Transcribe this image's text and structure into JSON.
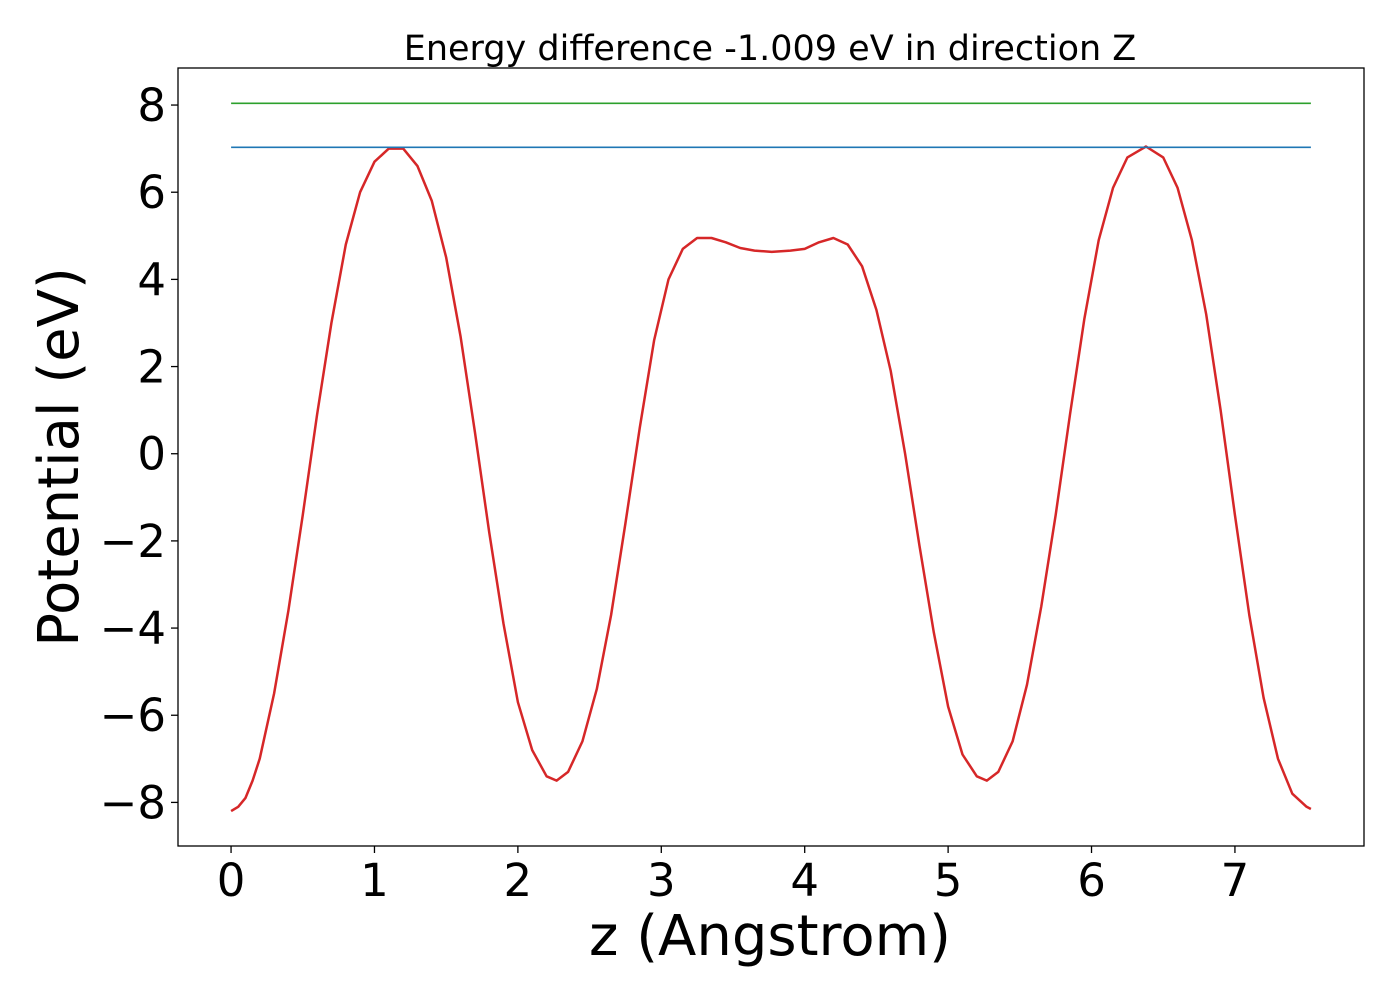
{
  "chart_data": {
    "type": "line",
    "title": "Energy difference -1.009 eV in direction Z",
    "xlabel": "z (Angstrom)",
    "ylabel": "Potential (eV)",
    "xlim": [
      -0.37,
      7.9
    ],
    "ylim": [
      -9.0,
      8.85
    ],
    "xticks": [
      0,
      1,
      2,
      3,
      4,
      5,
      6,
      7
    ],
    "yticks": [
      -8,
      -6,
      -4,
      -2,
      0,
      2,
      4,
      6,
      8
    ],
    "xtick_labels": [
      "0",
      "1",
      "2",
      "3",
      "4",
      "5",
      "6",
      "7"
    ],
    "ytick_labels": [
      "−8",
      "−6",
      "−4",
      "−2",
      "0",
      "2",
      "4",
      "6",
      "8"
    ],
    "grid": false,
    "series": [
      {
        "color": "#d62728",
        "x": [
          0.0,
          0.05,
          0.1,
          0.15,
          0.2,
          0.3,
          0.4,
          0.5,
          0.6,
          0.7,
          0.8,
          0.9,
          1.0,
          1.1,
          1.2,
          1.3,
          1.4,
          1.5,
          1.6,
          1.7,
          1.8,
          1.9,
          2.0,
          2.1,
          2.2,
          2.27,
          2.35,
          2.45,
          2.55,
          2.65,
          2.75,
          2.85,
          2.95,
          3.05,
          3.15,
          3.25,
          3.35,
          3.45,
          3.55,
          3.65,
          3.77,
          3.9,
          4.0,
          4.1,
          4.2,
          4.3,
          4.4,
          4.5,
          4.6,
          4.7,
          4.8,
          4.9,
          5.0,
          5.1,
          5.2,
          5.27,
          5.35,
          5.45,
          5.55,
          5.65,
          5.75,
          5.85,
          5.95,
          6.05,
          6.15,
          6.25,
          6.38,
          6.5,
          6.6,
          6.7,
          6.8,
          6.9,
          7.0,
          7.1,
          7.2,
          7.3,
          7.4,
          7.5,
          7.53
        ],
        "y": [
          -8.2,
          -8.1,
          -7.9,
          -7.5,
          -7.0,
          -5.5,
          -3.6,
          -1.4,
          0.9,
          3.0,
          4.8,
          6.0,
          6.7,
          7.0,
          7.0,
          6.6,
          5.8,
          4.5,
          2.7,
          0.5,
          -1.8,
          -3.9,
          -5.7,
          -6.8,
          -7.4,
          -7.5,
          -7.3,
          -6.6,
          -5.4,
          -3.7,
          -1.6,
          0.6,
          2.6,
          4.0,
          4.7,
          4.95,
          4.95,
          4.85,
          4.72,
          4.66,
          4.63,
          4.66,
          4.7,
          4.85,
          4.95,
          4.8,
          4.3,
          3.3,
          1.9,
          0.0,
          -2.1,
          -4.1,
          -5.8,
          -6.9,
          -7.4,
          -7.5,
          -7.3,
          -6.6,
          -5.3,
          -3.5,
          -1.4,
          0.9,
          3.1,
          4.9,
          6.1,
          6.8,
          7.05,
          6.8,
          6.1,
          4.9,
          3.2,
          1.0,
          -1.4,
          -3.7,
          -5.6,
          -7.0,
          -7.8,
          -8.1,
          -8.15
        ]
      },
      {
        "color": "#1f77b4",
        "x": [
          0.0,
          7.53
        ],
        "y": [
          7.03,
          7.03
        ]
      },
      {
        "color": "#2ca02c",
        "x": [
          0.0,
          7.53
        ],
        "y": [
          8.04,
          8.04
        ]
      }
    ]
  }
}
